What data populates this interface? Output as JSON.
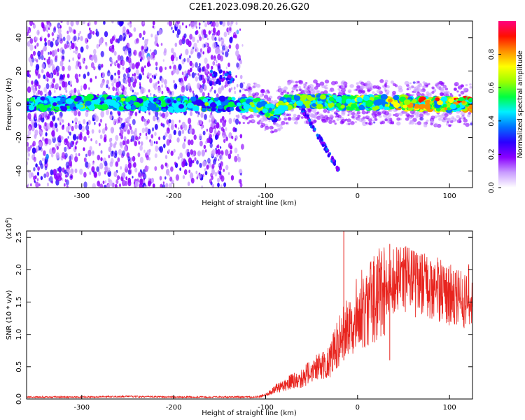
{
  "title": "C2E1.2023.098.20.26.G20",
  "chart_data": [
    {
      "type": "heatmap",
      "xlabel": "Height of straight line (km)",
      "ylabel": "Frequency (Hz)",
      "xlim": [
        -360,
        125
      ],
      "ylim": [
        -50,
        50
      ],
      "xticks": [
        -300,
        -200,
        -100,
        0,
        100
      ],
      "yticks": [
        -40,
        -20,
        0,
        20,
        40
      ],
      "colorbar": {
        "label": "Normalized spectral amplitude",
        "range": [
          0.0,
          1.0
        ],
        "ticks": [
          "0.0",
          "0.2",
          "0.4",
          "0.6",
          "0.8"
        ],
        "colors": [
          "#ffffff",
          "#c99cff",
          "#8a00ff",
          "#2a00ff",
          "#0072ff",
          "#00f0ff",
          "#00ff40",
          "#9cff00",
          "#ffff00",
          "#ff9000",
          "#ff1000",
          "#ff0080"
        ]
      },
      "trace": [
        {
          "x": -360,
          "f": 0
        },
        {
          "x": -300,
          "f": 1
        },
        {
          "x": -250,
          "f": 1
        },
        {
          "x": -200,
          "f": 0
        },
        {
          "x": -130,
          "f": 0
        },
        {
          "x": -110,
          "f": 0
        },
        {
          "x": -100,
          "f": -3
        },
        {
          "x": -90,
          "f": -6
        },
        {
          "x": -80,
          "f": 1
        },
        {
          "x": -60,
          "f": 2
        },
        {
          "x": -40,
          "f": 2
        },
        {
          "x": -20,
          "f": 1
        },
        {
          "x": 0,
          "f": 1
        },
        {
          "x": 40,
          "f": 1
        },
        {
          "x": 80,
          "f": 0
        },
        {
          "x": 125,
          "f": 0
        }
      ]
    },
    {
      "type": "line",
      "xlabel": "Height of straight line (km)",
      "ylabel": "SNR (10 * v/v)",
      "multiplier": "(x10",
      "multiplier_exp": "4",
      "multiplier_close": ")",
      "xlim": [
        -360,
        125
      ],
      "ylim": [
        0,
        2.6
      ],
      "xticks": [
        -300,
        -200,
        -100,
        0,
        100
      ],
      "yticks": [
        "0.0",
        "0.5",
        "1.0",
        "1.5",
        "2.0",
        "2.5"
      ],
      "color": "#e8241e",
      "series": [
        {
          "x": [
            -360,
            -300,
            -250,
            -200,
            -150,
            -110,
            -100,
            -90,
            -80,
            -70,
            -60,
            -50,
            -40,
            -30,
            -25,
            -20,
            -15,
            -10,
            -5,
            0,
            5,
            10,
            20,
            30,
            40,
            50,
            60,
            70,
            80,
            90,
            100,
            110,
            118,
            120,
            125
          ],
          "y": [
            0.03,
            0.03,
            0.04,
            0.03,
            0.03,
            0.03,
            0.06,
            0.15,
            0.22,
            0.28,
            0.32,
            0.45,
            0.5,
            0.6,
            0.75,
            0.9,
            1.0,
            1.1,
            1.25,
            1.35,
            1.4,
            1.45,
            1.6,
            1.7,
            1.8,
            1.85,
            1.8,
            1.75,
            1.72,
            1.7,
            1.6,
            1.6,
            1.45,
            1.6,
            1.65
          ]
        }
      ],
      "peaks": [
        {
          "x": -15,
          "y": 2.6
        },
        {
          "x": 35,
          "y": 2.4
        }
      ]
    }
  ]
}
